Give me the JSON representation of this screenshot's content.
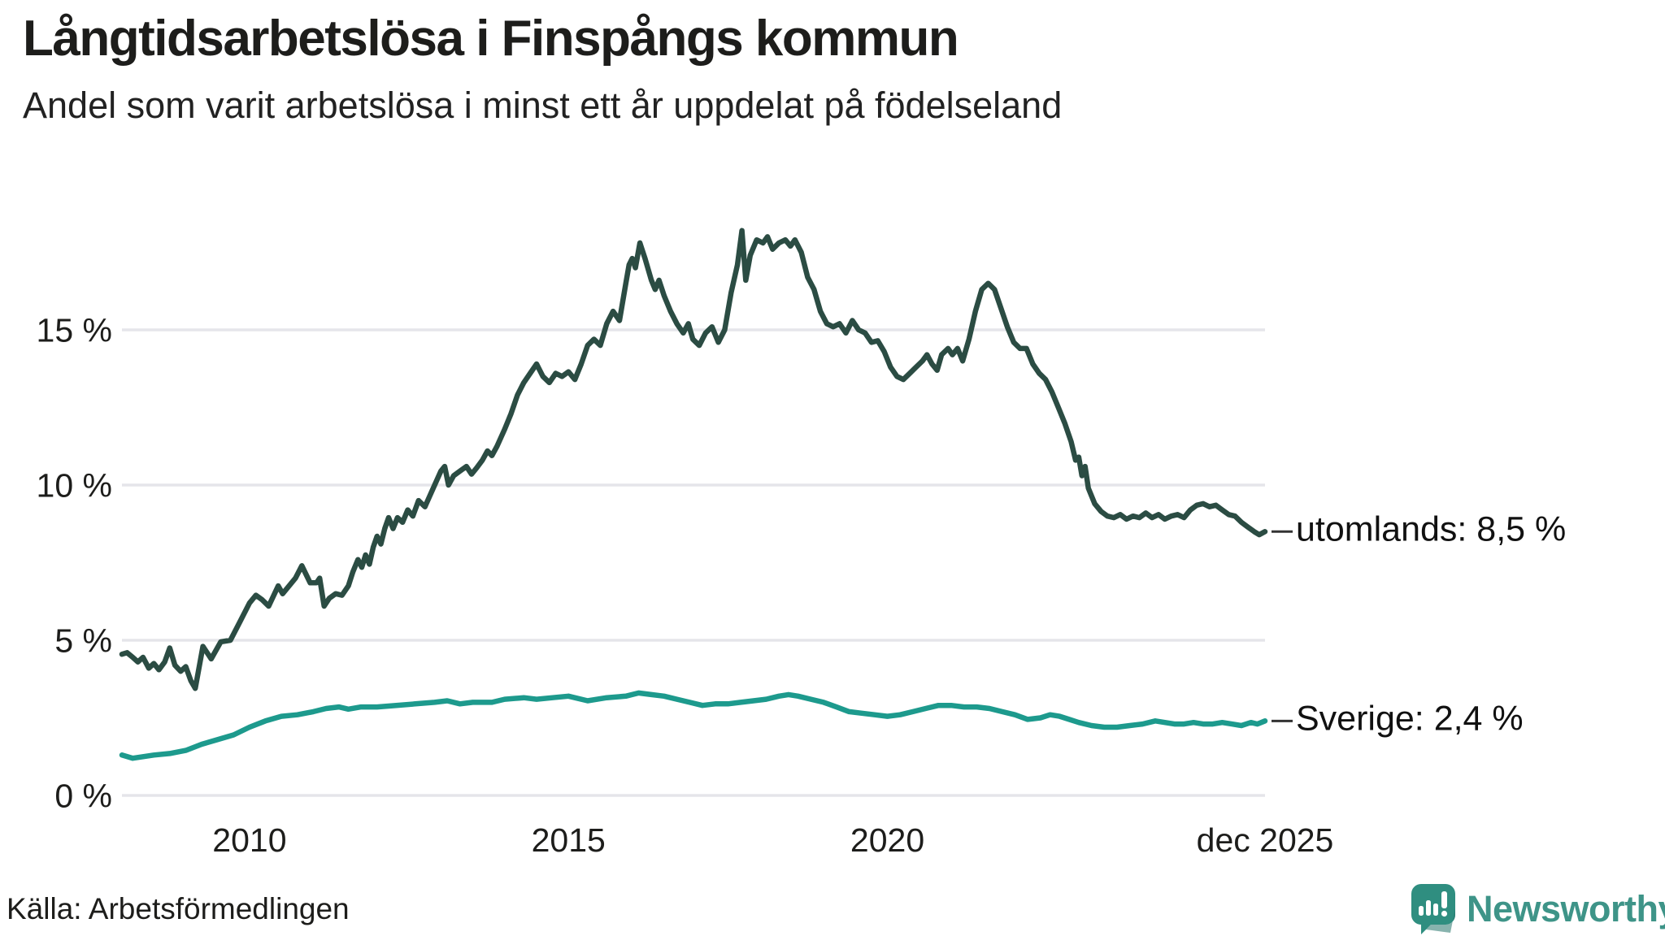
{
  "header": {
    "title": "Långtidsarbetslösa i Finspångs kommun",
    "subtitle": "Andel som varit arbetslösa i minst ett år uppdelat på födelseland"
  },
  "chart_data": {
    "type": "line",
    "title": "Långtidsarbetslösa i Finspångs kommun",
    "subtitle": "Andel som varit arbetslösa i minst ett år uppdelat på födelseland",
    "xlabel": "",
    "ylabel": "",
    "x_domain": [
      2008.0,
      2025.92
    ],
    "ylim": [
      0,
      18.6
    ],
    "grid": true,
    "gridline_color": "#e5e5ea",
    "y_ticks": [
      {
        "value": 0,
        "label": "0 %"
      },
      {
        "value": 5,
        "label": "5 %"
      },
      {
        "value": 10,
        "label": "10 %"
      },
      {
        "value": 15,
        "label": "15 %"
      }
    ],
    "x_ticks": [
      {
        "value": 2010,
        "label": "2010"
      },
      {
        "value": 2015,
        "label": "2015"
      },
      {
        "value": 2020,
        "label": "2020"
      },
      {
        "value": 2025.92,
        "label": "dec 2025"
      }
    ],
    "legend_position": "end-of-line-labels",
    "series": [
      {
        "name": "utomlands",
        "label": "utomlands: 8,5 %",
        "last_value": 8.5,
        "color": "#2b4c43",
        "points": [
          [
            2008.0,
            4.55
          ],
          [
            2008.08,
            4.6
          ],
          [
            2008.17,
            4.45
          ],
          [
            2008.25,
            4.3
          ],
          [
            2008.33,
            4.45
          ],
          [
            2008.42,
            4.1
          ],
          [
            2008.5,
            4.25
          ],
          [
            2008.58,
            4.05
          ],
          [
            2008.67,
            4.3
          ],
          [
            2008.75,
            4.75
          ],
          [
            2008.83,
            4.2
          ],
          [
            2008.92,
            4.0
          ],
          [
            2009.0,
            4.15
          ],
          [
            2009.08,
            3.7
          ],
          [
            2009.15,
            3.45
          ],
          [
            2009.27,
            4.8
          ],
          [
            2009.4,
            4.4
          ],
          [
            2009.55,
            4.95
          ],
          [
            2009.7,
            5.0
          ],
          [
            2009.85,
            5.6
          ],
          [
            2010.0,
            6.2
          ],
          [
            2010.1,
            6.45
          ],
          [
            2010.2,
            6.3
          ],
          [
            2010.3,
            6.1
          ],
          [
            2010.45,
            6.75
          ],
          [
            2010.52,
            6.5
          ],
          [
            2010.62,
            6.75
          ],
          [
            2010.72,
            7.0
          ],
          [
            2010.82,
            7.4
          ],
          [
            2010.95,
            6.85
          ],
          [
            2011.05,
            6.85
          ],
          [
            2011.1,
            7.0
          ],
          [
            2011.17,
            6.1
          ],
          [
            2011.25,
            6.35
          ],
          [
            2011.35,
            6.5
          ],
          [
            2011.45,
            6.45
          ],
          [
            2011.55,
            6.75
          ],
          [
            2011.62,
            7.2
          ],
          [
            2011.7,
            7.6
          ],
          [
            2011.76,
            7.35
          ],
          [
            2011.82,
            7.75
          ],
          [
            2011.88,
            7.45
          ],
          [
            2011.94,
            8.0
          ],
          [
            2012.0,
            8.35
          ],
          [
            2012.06,
            8.1
          ],
          [
            2012.12,
            8.6
          ],
          [
            2012.18,
            8.95
          ],
          [
            2012.25,
            8.6
          ],
          [
            2012.32,
            8.95
          ],
          [
            2012.4,
            8.8
          ],
          [
            2012.48,
            9.2
          ],
          [
            2012.56,
            9.0
          ],
          [
            2012.65,
            9.5
          ],
          [
            2012.75,
            9.3
          ],
          [
            2012.88,
            9.9
          ],
          [
            2013.0,
            10.45
          ],
          [
            2013.06,
            10.6
          ],
          [
            2013.12,
            10.0
          ],
          [
            2013.2,
            10.3
          ],
          [
            2013.3,
            10.45
          ],
          [
            2013.4,
            10.6
          ],
          [
            2013.48,
            10.35
          ],
          [
            2013.56,
            10.55
          ],
          [
            2013.65,
            10.8
          ],
          [
            2013.73,
            11.1
          ],
          [
            2013.8,
            10.95
          ],
          [
            2013.88,
            11.25
          ],
          [
            2014.0,
            11.8
          ],
          [
            2014.1,
            12.3
          ],
          [
            2014.2,
            12.9
          ],
          [
            2014.3,
            13.3
          ],
          [
            2014.4,
            13.6
          ],
          [
            2014.5,
            13.9
          ],
          [
            2014.6,
            13.5
          ],
          [
            2014.7,
            13.3
          ],
          [
            2014.8,
            13.6
          ],
          [
            2014.9,
            13.5
          ],
          [
            2015.0,
            13.65
          ],
          [
            2015.1,
            13.4
          ],
          [
            2015.2,
            13.9
          ],
          [
            2015.3,
            14.5
          ],
          [
            2015.4,
            14.7
          ],
          [
            2015.5,
            14.5
          ],
          [
            2015.6,
            15.2
          ],
          [
            2015.7,
            15.6
          ],
          [
            2015.8,
            15.3
          ],
          [
            2015.9,
            16.5
          ],
          [
            2015.95,
            17.1
          ],
          [
            2016.0,
            17.3
          ],
          [
            2016.05,
            17.0
          ],
          [
            2016.12,
            17.8
          ],
          [
            2016.2,
            17.3
          ],
          [
            2016.3,
            16.6
          ],
          [
            2016.36,
            16.3
          ],
          [
            2016.42,
            16.6
          ],
          [
            2016.5,
            16.1
          ],
          [
            2016.6,
            15.6
          ],
          [
            2016.7,
            15.2
          ],
          [
            2016.8,
            14.9
          ],
          [
            2016.88,
            15.2
          ],
          [
            2016.95,
            14.7
          ],
          [
            2017.05,
            14.5
          ],
          [
            2017.15,
            14.9
          ],
          [
            2017.25,
            15.1
          ],
          [
            2017.35,
            14.6
          ],
          [
            2017.45,
            15.0
          ],
          [
            2017.55,
            16.2
          ],
          [
            2017.65,
            17.1
          ],
          [
            2017.72,
            18.2
          ],
          [
            2017.78,
            16.6
          ],
          [
            2017.85,
            17.4
          ],
          [
            2017.95,
            17.9
          ],
          [
            2018.05,
            17.8
          ],
          [
            2018.12,
            18.0
          ],
          [
            2018.2,
            17.6
          ],
          [
            2018.3,
            17.8
          ],
          [
            2018.4,
            17.9
          ],
          [
            2018.48,
            17.7
          ],
          [
            2018.55,
            17.9
          ],
          [
            2018.65,
            17.5
          ],
          [
            2018.75,
            16.7
          ],
          [
            2018.85,
            16.3
          ],
          [
            2018.95,
            15.6
          ],
          [
            2019.05,
            15.2
          ],
          [
            2019.15,
            15.1
          ],
          [
            2019.25,
            15.2
          ],
          [
            2019.35,
            14.9
          ],
          [
            2019.45,
            15.3
          ],
          [
            2019.55,
            15.0
          ],
          [
            2019.65,
            14.9
          ],
          [
            2019.75,
            14.6
          ],
          [
            2019.85,
            14.65
          ],
          [
            2019.95,
            14.3
          ],
          [
            2020.05,
            13.8
          ],
          [
            2020.15,
            13.5
          ],
          [
            2020.25,
            13.4
          ],
          [
            2020.35,
            13.6
          ],
          [
            2020.45,
            13.8
          ],
          [
            2020.55,
            14.0
          ],
          [
            2020.62,
            14.2
          ],
          [
            2020.7,
            13.9
          ],
          [
            2020.78,
            13.7
          ],
          [
            2020.85,
            14.2
          ],
          [
            2020.95,
            14.4
          ],
          [
            2021.02,
            14.2
          ],
          [
            2021.1,
            14.4
          ],
          [
            2021.18,
            14.0
          ],
          [
            2021.28,
            14.7
          ],
          [
            2021.38,
            15.6
          ],
          [
            2021.48,
            16.3
          ],
          [
            2021.58,
            16.5
          ],
          [
            2021.68,
            16.3
          ],
          [
            2021.78,
            15.7
          ],
          [
            2021.88,
            15.1
          ],
          [
            2021.98,
            14.6
          ],
          [
            2022.08,
            14.4
          ],
          [
            2022.18,
            14.4
          ],
          [
            2022.28,
            13.9
          ],
          [
            2022.38,
            13.6
          ],
          [
            2022.48,
            13.4
          ],
          [
            2022.58,
            13.0
          ],
          [
            2022.68,
            12.5
          ],
          [
            2022.78,
            12.0
          ],
          [
            2022.88,
            11.4
          ],
          [
            2022.95,
            10.8
          ],
          [
            2023.0,
            10.9
          ],
          [
            2023.05,
            10.3
          ],
          [
            2023.1,
            10.6
          ],
          [
            2023.15,
            9.9
          ],
          [
            2023.25,
            9.4
          ],
          [
            2023.35,
            9.15
          ],
          [
            2023.45,
            9.0
          ],
          [
            2023.55,
            8.95
          ],
          [
            2023.65,
            9.05
          ],
          [
            2023.75,
            8.9
          ],
          [
            2023.85,
            9.0
          ],
          [
            2023.95,
            8.95
          ],
          [
            2024.05,
            9.1
          ],
          [
            2024.15,
            8.95
          ],
          [
            2024.25,
            9.05
          ],
          [
            2024.35,
            8.9
          ],
          [
            2024.45,
            9.0
          ],
          [
            2024.55,
            9.05
          ],
          [
            2024.65,
            8.95
          ],
          [
            2024.75,
            9.2
          ],
          [
            2024.85,
            9.35
          ],
          [
            2024.95,
            9.4
          ],
          [
            2025.05,
            9.3
          ],
          [
            2025.15,
            9.35
          ],
          [
            2025.25,
            9.2
          ],
          [
            2025.35,
            9.05
          ],
          [
            2025.45,
            9.0
          ],
          [
            2025.55,
            8.8
          ],
          [
            2025.65,
            8.65
          ],
          [
            2025.75,
            8.5
          ],
          [
            2025.83,
            8.4
          ],
          [
            2025.92,
            8.5
          ]
        ]
      },
      {
        "name": "Sverige",
        "label": "Sverige: 2,4 %",
        "last_value": 2.4,
        "color": "#1d9a8d",
        "points": [
          [
            2008.0,
            1.3
          ],
          [
            2008.17,
            1.2
          ],
          [
            2008.33,
            1.25
          ],
          [
            2008.5,
            1.3
          ],
          [
            2008.75,
            1.35
          ],
          [
            2009.0,
            1.45
          ],
          [
            2009.25,
            1.65
          ],
          [
            2009.5,
            1.8
          ],
          [
            2009.75,
            1.95
          ],
          [
            2010.0,
            2.2
          ],
          [
            2010.25,
            2.4
          ],
          [
            2010.5,
            2.55
          ],
          [
            2010.75,
            2.6
          ],
          [
            2011.0,
            2.7
          ],
          [
            2011.2,
            2.8
          ],
          [
            2011.4,
            2.85
          ],
          [
            2011.55,
            2.78
          ],
          [
            2011.75,
            2.85
          ],
          [
            2012.0,
            2.85
          ],
          [
            2012.3,
            2.9
          ],
          [
            2012.6,
            2.95
          ],
          [
            2012.9,
            3.0
          ],
          [
            2013.1,
            3.05
          ],
          [
            2013.3,
            2.95
          ],
          [
            2013.5,
            3.0
          ],
          [
            2013.8,
            3.0
          ],
          [
            2014.0,
            3.1
          ],
          [
            2014.3,
            3.15
          ],
          [
            2014.5,
            3.1
          ],
          [
            2014.75,
            3.15
          ],
          [
            2015.0,
            3.2
          ],
          [
            2015.3,
            3.05
          ],
          [
            2015.6,
            3.15
          ],
          [
            2015.9,
            3.2
          ],
          [
            2016.1,
            3.3
          ],
          [
            2016.3,
            3.25
          ],
          [
            2016.5,
            3.2
          ],
          [
            2016.7,
            3.1
          ],
          [
            2016.9,
            3.0
          ],
          [
            2017.1,
            2.9
          ],
          [
            2017.3,
            2.95
          ],
          [
            2017.5,
            2.95
          ],
          [
            2017.7,
            3.0
          ],
          [
            2017.9,
            3.05
          ],
          [
            2018.1,
            3.1
          ],
          [
            2018.3,
            3.2
          ],
          [
            2018.45,
            3.25
          ],
          [
            2018.6,
            3.2
          ],
          [
            2018.8,
            3.1
          ],
          [
            2019.0,
            3.0
          ],
          [
            2019.2,
            2.85
          ],
          [
            2019.4,
            2.7
          ],
          [
            2019.6,
            2.65
          ],
          [
            2019.8,
            2.6
          ],
          [
            2020.0,
            2.55
          ],
          [
            2020.2,
            2.6
          ],
          [
            2020.4,
            2.7
          ],
          [
            2020.6,
            2.8
          ],
          [
            2020.8,
            2.9
          ],
          [
            2021.0,
            2.9
          ],
          [
            2021.2,
            2.85
          ],
          [
            2021.4,
            2.85
          ],
          [
            2021.6,
            2.8
          ],
          [
            2021.8,
            2.7
          ],
          [
            2022.0,
            2.6
          ],
          [
            2022.2,
            2.45
          ],
          [
            2022.4,
            2.5
          ],
          [
            2022.55,
            2.6
          ],
          [
            2022.7,
            2.55
          ],
          [
            2022.85,
            2.45
          ],
          [
            2023.0,
            2.35
          ],
          [
            2023.2,
            2.25
          ],
          [
            2023.4,
            2.2
          ],
          [
            2023.6,
            2.2
          ],
          [
            2023.8,
            2.25
          ],
          [
            2024.0,
            2.3
          ],
          [
            2024.2,
            2.4
          ],
          [
            2024.35,
            2.35
          ],
          [
            2024.5,
            2.3
          ],
          [
            2024.65,
            2.3
          ],
          [
            2024.8,
            2.35
          ],
          [
            2024.95,
            2.3
          ],
          [
            2025.1,
            2.3
          ],
          [
            2025.25,
            2.35
          ],
          [
            2025.4,
            2.3
          ],
          [
            2025.55,
            2.25
          ],
          [
            2025.7,
            2.35
          ],
          [
            2025.8,
            2.3
          ],
          [
            2025.92,
            2.4
          ]
        ]
      }
    ]
  },
  "footer": {
    "source": "Källa: Arbetsförmedlingen",
    "brand": "Newsworthy"
  },
  "colors": {
    "utomlands_line": "#2b4c43",
    "sverige_line": "#1d9a8d",
    "gridline": "#e5e5ea",
    "text": "#1d1d1b",
    "brand_teal": "#3e9488",
    "brand_icon": "#2f8e80",
    "brand_icon_dark": "#27756b"
  }
}
